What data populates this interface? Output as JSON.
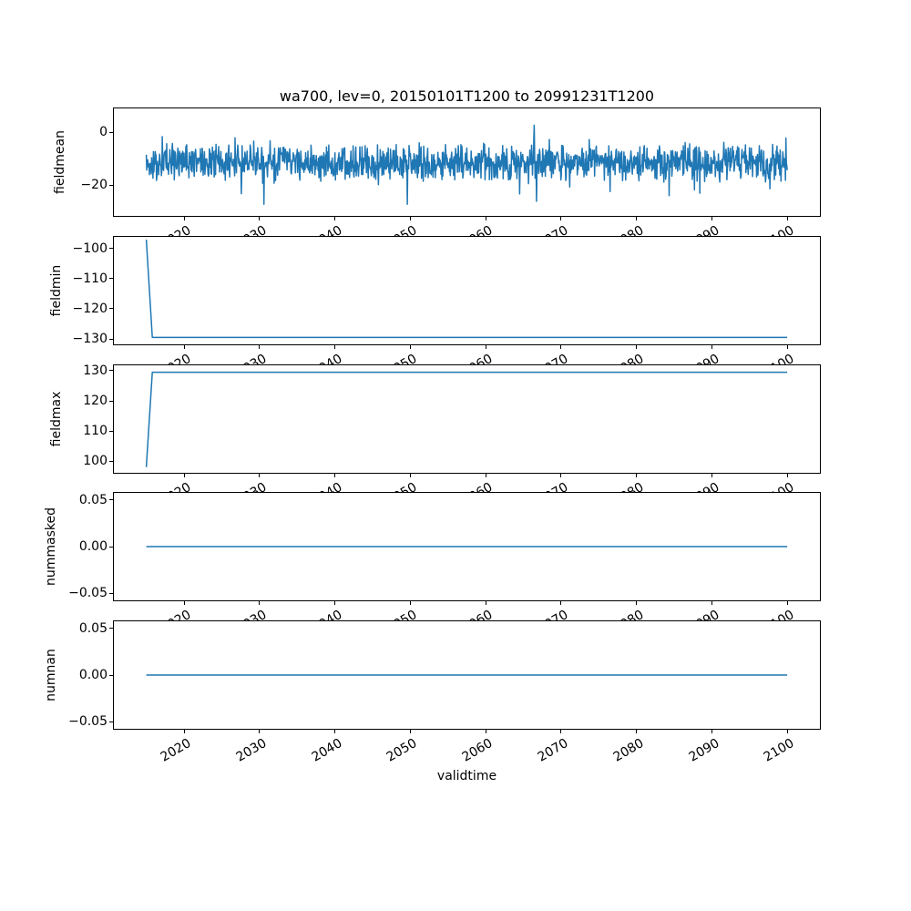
{
  "figure": {
    "title": "wa700, lev=0, 20150101T1200 to 20991231T1200",
    "xlabel": "validtime",
    "background_color": "#ffffff",
    "line_color": "#1f77b4",
    "xticks": {
      "values": [
        2020,
        2030,
        2040,
        2050,
        2060,
        2070,
        2080,
        2090,
        2100
      ],
      "labels": [
        "2020",
        "2030",
        "2040",
        "2050",
        "2060",
        "2070",
        "2080",
        "2090",
        "2100"
      ]
    }
  },
  "chart_data": [
    {
      "type": "line",
      "ylabel": "fieldmean",
      "xlim": [
        2010.7,
        2104.3
      ],
      "ylim": [
        -31.7,
        9.0
      ],
      "grid": false,
      "legend": null,
      "yticks": [
        {
          "value": 0,
          "label": "0"
        },
        {
          "value": -20,
          "label": "−20"
        }
      ],
      "series": [
        {
          "name": "fieldmean",
          "color": "#1f77b4",
          "style": "noise",
          "x_start": 2015.0,
          "x_end": 2099.97,
          "points_per_year": 17,
          "mean": -11.5,
          "core_halfwidth": 7.6,
          "spike_probability": 0.07,
          "spike_multiplier": 2.1,
          "clamp": [
            -27.6,
            5.0
          ],
          "seed": 20150101
        }
      ]
    },
    {
      "type": "line",
      "ylabel": "fieldmin",
      "xlim": [
        2010.7,
        2104.3
      ],
      "ylim": [
        -131.8,
        -96.1
      ],
      "grid": false,
      "legend": null,
      "yticks": [
        {
          "value": -100,
          "label": "−100"
        },
        {
          "value": -110,
          "label": "−110"
        },
        {
          "value": -120,
          "label": "−120"
        },
        {
          "value": -130,
          "label": "−130"
        }
      ],
      "series": [
        {
          "name": "fieldmin",
          "color": "#1f77b4",
          "style": "path",
          "points": [
            [
              2015.0,
              -97.0
            ],
            [
              2015.8,
              -129.5
            ],
            [
              2099.97,
              -129.5
            ]
          ]
        }
      ]
    },
    {
      "type": "line",
      "ylabel": "fieldmax",
      "xlim": [
        2010.7,
        2104.3
      ],
      "ylim": [
        96.1,
        131.8
      ],
      "grid": false,
      "legend": null,
      "yticks": [
        {
          "value": 130,
          "label": "130"
        },
        {
          "value": 120,
          "label": "120"
        },
        {
          "value": 110,
          "label": "110"
        },
        {
          "value": 100,
          "label": "100"
        }
      ],
      "series": [
        {
          "name": "fieldmax",
          "color": "#1f77b4",
          "style": "path",
          "points": [
            [
              2015.0,
              98.0
            ],
            [
              2015.8,
              129.5
            ],
            [
              2099.97,
              129.5
            ]
          ]
        }
      ]
    },
    {
      "type": "line",
      "ylabel": "nummasked",
      "xlim": [
        2010.7,
        2104.3
      ],
      "ylim": [
        -0.0578,
        0.0578
      ],
      "grid": false,
      "legend": null,
      "yticks": [
        {
          "value": 0.05,
          "label": "0.05"
        },
        {
          "value": 0.0,
          "label": "0.00"
        },
        {
          "value": -0.05,
          "label": "−0.05"
        }
      ],
      "series": [
        {
          "name": "nummasked",
          "color": "#1f77b4",
          "style": "path",
          "points": [
            [
              2015.0,
              0.0
            ],
            [
              2099.97,
              0.0
            ]
          ]
        }
      ]
    },
    {
      "type": "line",
      "ylabel": "numnan",
      "xlim": [
        2010.7,
        2104.3
      ],
      "ylim": [
        -0.0578,
        0.0578
      ],
      "grid": false,
      "legend": null,
      "yticks": [
        {
          "value": 0.05,
          "label": "0.05"
        },
        {
          "value": 0.0,
          "label": "0.00"
        },
        {
          "value": -0.05,
          "label": "−0.05"
        }
      ],
      "series": [
        {
          "name": "numnan",
          "color": "#1f77b4",
          "style": "path",
          "points": [
            [
              2015.0,
              0.0
            ],
            [
              2099.97,
              0.0
            ]
          ]
        }
      ]
    }
  ]
}
